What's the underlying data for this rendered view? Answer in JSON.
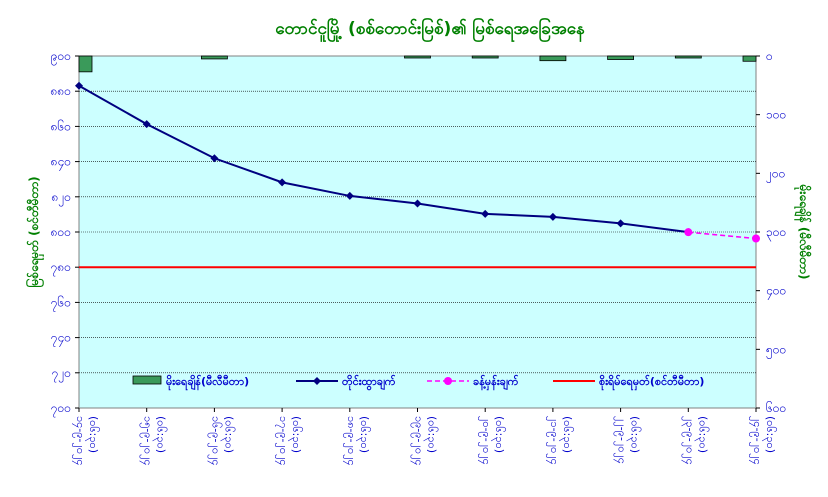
{
  "chart_data": {
    "type": "line",
    "title": "တောင်ငူမြို့ (စစ်တောင်းမြစ်)၏ မြစ်ရေအခြေအနေ",
    "ylabel_left": "မြစ်ရေမှတ် (စင်တီမီတာ)",
    "ylabel_right": "မိုးရေချိန် (မီလီမီတာ)",
    "ylim_left": [
      900,
      700
    ],
    "ylim_right": [
      0,
      600
    ],
    "yticks_left": [
      "၉၀၀",
      "၈၈၀",
      "၈၆၀",
      "၈၄၀",
      "၈၂၀",
      "၈၀၀",
      "၇၈၀",
      "၇၆၀",
      "၇၄၀",
      "၇၂၀",
      "၇၀၀"
    ],
    "yticks_right": [
      "၀",
      "၁၀၀",
      "၂၀၀",
      "၃၀၀",
      "၄၀၀",
      "၅၀၀",
      "၆၀၀"
    ],
    "categories": [
      [
        "၁၄-၉-၂၀၂၄",
        "(၀၆:၃၀)"
      ],
      [
        "၁၅-၉-၂၀၂၄",
        "(၀၆:၃၀)"
      ],
      [
        "၁၆-၉-၂၀၂၄",
        "(၀၆:၃၀)"
      ],
      [
        "၁၇-၉-၂၀၂၄",
        "(၀၆:၃၀)"
      ],
      [
        "၁၈-၉-၂၀၂၄",
        "(၀၆:၃၀)"
      ],
      [
        "၁၉-၉-၂၀၂၄",
        "(၀၆:၃၀)"
      ],
      [
        "၂၀-၉-၂၀၂၄",
        "(၀၆:၃၀)"
      ],
      [
        "၂၁-၉-၂၀၂၄",
        "(၀၆:၃၀)"
      ],
      [
        "၂၂-၉-၂၀၂၄",
        "(၀၆:၃၀)"
      ],
      [
        "၂၃-၉-၂၀၂၄",
        "(၀၆:၃၀)"
      ],
      [
        "၂၄-၉-၂၀၂၄",
        "(၀၆:၃၀)"
      ]
    ],
    "series": [
      {
        "name": "မိုးရေချိန်(မီလီမီတာ)",
        "kind": "bar",
        "axis": "right",
        "color": "#3a9a5a",
        "values": [
          27,
          null,
          5,
          null,
          null,
          2,
          1,
          8,
          6,
          1,
          9
        ]
      },
      {
        "name": "တိုင်းထွာချက်",
        "kind": "line",
        "axis": "left",
        "color": "#000080",
        "values": [
          883.1,
          861.3,
          841.9,
          828.2,
          820.5,
          816.2,
          810.3,
          808.6,
          804.9,
          799.9,
          null
        ]
      },
      {
        "name": "ခန့်မှန်းချက်",
        "kind": "dashed",
        "axis": "left",
        "color": "#ff00ff",
        "values": [
          null,
          null,
          null,
          null,
          null,
          null,
          null,
          null,
          null,
          799.9,
          796.3
        ]
      },
      {
        "name": "စိုးရိမ်ရေမှတ်(စင်တီမီတာ)",
        "kind": "hline",
        "axis": "left",
        "color": "#ff0000",
        "value": 780
      }
    ],
    "grid": true,
    "legend_position": "bottom"
  }
}
